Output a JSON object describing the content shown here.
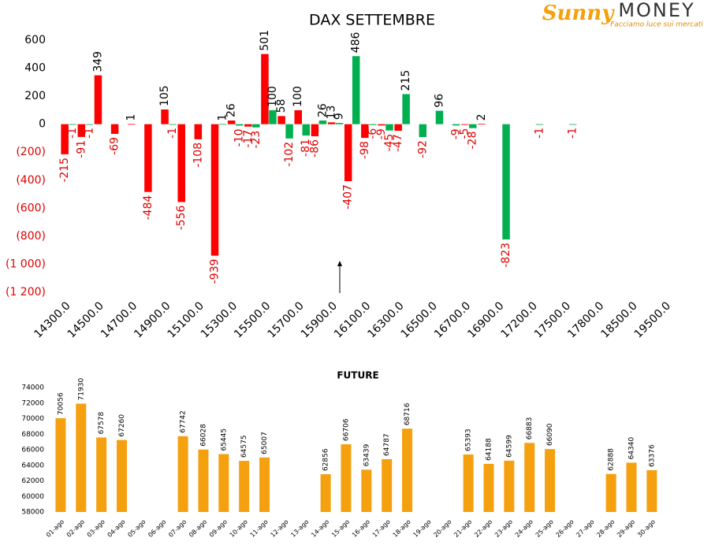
{
  "logo": {
    "brand": "Sunny",
    "name": "MONEY",
    "tagline": "Facciamo luce sui mercati"
  },
  "chart_data": [
    {
      "type": "bar",
      "title": "DAX SETTEMBRE",
      "categories": [
        "14300.0",
        null,
        "14500.0",
        null,
        "14700.0",
        null,
        "14900.0",
        null,
        "15100.0",
        null,
        "15300.0",
        null,
        "15500.0",
        null,
        "15700.0",
        null,
        "15900.0",
        null,
        "16100.0",
        null,
        "16300.0",
        null,
        "16500.0",
        null,
        "16700.0",
        null,
        "16900.0",
        null,
        "17200.0",
        null,
        "17500.0",
        null,
        "17800.0",
        null,
        "18500.0",
        null,
        "19500.0"
      ],
      "series": [
        {
          "color": "#ff0000",
          "values": [
            -215,
            -91,
            349,
            -69,
            1,
            -484,
            105,
            -556,
            -108,
            -939,
            26,
            -17,
            501,
            58,
            100,
            -86,
            13,
            -407,
            -98,
            -9,
            -47,
            null,
            null,
            null,
            -5,
            2,
            null,
            null,
            null,
            null,
            null,
            null,
            null,
            null,
            null,
            null,
            null
          ]
        },
        {
          "color": "#00b050",
          "values": [
            -1,
            -1,
            null,
            null,
            null,
            null,
            -1,
            null,
            null,
            1,
            -10,
            -23,
            100,
            -102,
            -81,
            26,
            9,
            486,
            -6,
            -45,
            215,
            -92,
            96,
            -9,
            -28,
            null,
            -823,
            null,
            -1,
            null,
            -1,
            null,
            null,
            null,
            null,
            null,
            null
          ]
        }
      ],
      "ylim": [
        -1200,
        600
      ],
      "yticks": [
        600,
        400,
        200,
        0,
        {
          "value": -200,
          "label": "(200)"
        },
        {
          "value": -400,
          "label": "(400)"
        },
        {
          "value": -600,
          "label": "(600)"
        },
        {
          "value": -800,
          "label": "(800)"
        },
        {
          "value": -1000,
          "label": "(1 000)"
        },
        {
          "value": -1200,
          "label": "(1 200)"
        }
      ],
      "negative_color": "#e00000"
    },
    {
      "type": "bar",
      "title": "FUTURE",
      "categories": [
        "01-ago",
        "02-ago",
        "03-ago",
        "04-ago",
        "05-ago",
        "06-ago",
        "07-ago",
        "08-ago",
        "09-ago",
        "10-ago",
        "11-ago",
        "12-ago",
        "13-ago",
        "14-ago",
        "15-ago",
        "16-ago",
        "17-ago",
        "18-ago",
        "19-ago",
        "20-ago",
        "21-ago",
        "22-ago",
        "23-ago",
        "24-ago",
        "25-ago",
        "26-ago",
        "27-ago",
        "28-ago",
        "29-ago",
        "30-ago"
      ],
      "values": [
        70056,
        71930,
        67578,
        67260,
        null,
        null,
        67742,
        66028,
        65445,
        64575,
        65007,
        null,
        null,
        62856,
        66706,
        63439,
        64787,
        68716,
        null,
        null,
        65393,
        64188,
        64599,
        66883,
        66090,
        null,
        null,
        62888,
        64340,
        63376
      ],
      "color": "#f5a00f",
      "ylim": [
        58000,
        74000
      ],
      "yticks": [
        58000,
        60000,
        62000,
        64000,
        66000,
        68000,
        70000,
        72000,
        74000
      ]
    }
  ]
}
